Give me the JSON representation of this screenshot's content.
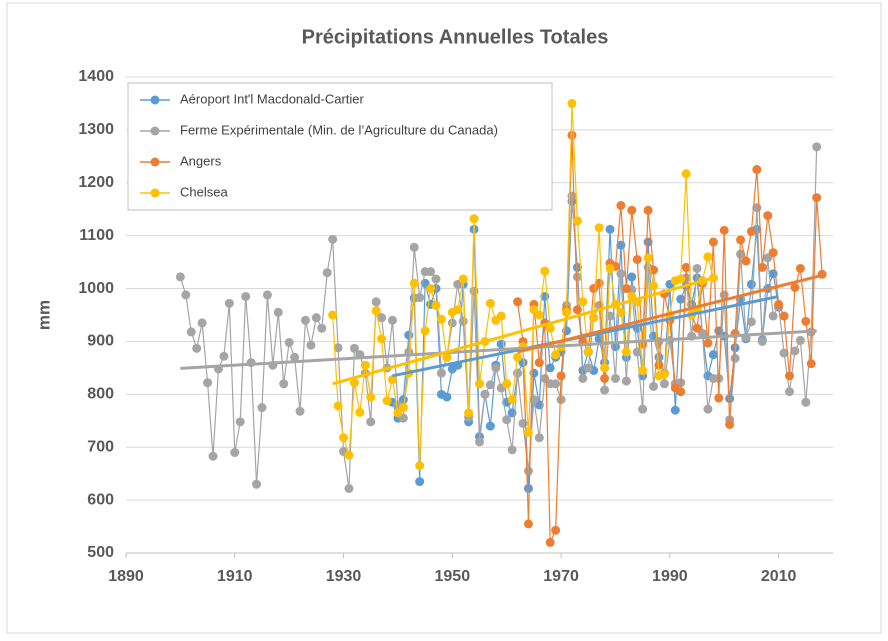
{
  "chart_data": {
    "type": "line",
    "title": "Précipitations Annuelles Totales",
    "ylabel": "mm",
    "xlim": [
      1890,
      2020
    ],
    "xticks": [
      1890,
      1910,
      1930,
      1950,
      1970,
      1990,
      2010
    ],
    "ylim": [
      500,
      1400
    ],
    "yticks": [
      500,
      600,
      700,
      800,
      900,
      1000,
      1100,
      1200,
      1300,
      1400
    ],
    "grid": true,
    "legend": "upper left",
    "series": [
      {
        "name": "Aéroport Int'l Macdonald-Cartier",
        "color": "#5b9bd5",
        "x": [
          1939,
          1940,
          1941,
          1942,
          1943,
          1944,
          1945,
          1946,
          1947,
          1948,
          1949,
          1950,
          1951,
          1952,
          1953,
          1954,
          1955,
          1956,
          1957,
          1958,
          1959,
          1960,
          1961,
          1962,
          1963,
          1964,
          1965,
          1966,
          1967,
          1968,
          1969,
          1970,
          1971,
          1972,
          1973,
          1974,
          1975,
          1976,
          1977,
          1978,
          1979,
          1980,
          1981,
          1982,
          1983,
          1984,
          1985,
          1986,
          1987,
          1988,
          1989,
          1990,
          1991,
          1992,
          1993,
          1994,
          1995,
          1996,
          1997,
          1998,
          1999,
          2000,
          2001,
          2002,
          2003,
          2004,
          2005,
          2006,
          2007,
          2008,
          2009,
          2010
        ],
        "values": [
          785,
          755,
          790,
          912,
          982,
          635,
          1010,
          970,
          1000,
          800,
          795,
          848,
          855,
          1008,
          748,
          1112,
          720,
          800,
          740,
          855,
          895,
          785,
          765,
          840,
          860,
          622,
          840,
          780,
          985,
          850,
          870,
          880,
          920,
          1165,
          1040,
          845,
          880,
          845,
          905,
          860,
          1112,
          890,
          1082,
          870,
          1022,
          925,
          835,
          1088,
          910,
          870,
          840,
          1008,
          770,
          980,
          1005,
          970,
          1020,
          915,
          835,
          875,
          920,
          910,
          792,
          888,
          980,
          905,
          1008,
          1112,
          903,
          1000,
          1028,
          965
        ],
        "trendline": [
          835,
          985
        ]
      },
      {
        "name": "Ferme Expérimentale (Min. de l’Agriculture du Canada)",
        "color": "#a5a5a5",
        "x": [
          1900,
          1901,
          1902,
          1903,
          1904,
          1905,
          1906,
          1907,
          1908,
          1909,
          1910,
          1911,
          1912,
          1913,
          1914,
          1915,
          1916,
          1917,
          1918,
          1919,
          1920,
          1921,
          1922,
          1923,
          1924,
          1925,
          1926,
          1927,
          1928,
          1929,
          1930,
          1931,
          1932,
          1933,
          1934,
          1935,
          1936,
          1937,
          1938,
          1939,
          1940,
          1941,
          1942,
          1943,
          1944,
          1945,
          1946,
          1947,
          1948,
          1949,
          1950,
          1951,
          1952,
          1953,
          1954,
          1955,
          1956,
          1957,
          1958,
          1959,
          1960,
          1961,
          1962,
          1963,
          1964,
          1965,
          1966,
          1967,
          1968,
          1969,
          1970,
          1971,
          1972,
          1973,
          1974,
          1975,
          1976,
          1977,
          1978,
          1979,
          1980,
          1981,
          1982,
          1983,
          1984,
          1985,
          1986,
          1987,
          1988,
          1989,
          1990,
          1991,
          1992,
          1993,
          1994,
          1995,
          1996,
          1997,
          1998,
          1999,
          2000,
          2001,
          2002,
          2003,
          2004,
          2005,
          2006,
          2007,
          2008,
          2009,
          2010,
          2011,
          2012,
          2013,
          2014,
          2015,
          2016,
          2017
        ],
        "values": [
          1022,
          988,
          918,
          887,
          935,
          822,
          683,
          848,
          872,
          972,
          690,
          748,
          985,
          860,
          630,
          775,
          988,
          855,
          955,
          820,
          898,
          870,
          768,
          940,
          893,
          945,
          925,
          1030,
          1093,
          888,
          692,
          622,
          887,
          875,
          840,
          748,
          975,
          945,
          850,
          940,
          780,
          755,
          880,
          1078,
          983,
          1032,
          1032,
          1018,
          840,
          870,
          935,
          1008,
          938,
          757,
          995,
          710,
          800,
          818,
          850,
          812,
          752,
          695,
          840,
          745,
          655,
          790,
          718,
          830,
          820,
          820,
          790,
          968,
          1175,
          1022,
          830,
          850,
          945,
          968,
          808,
          948,
          830,
          1028,
          825,
          998,
          880,
          772,
          1040,
          815,
          900,
          820,
          902,
          820,
          822,
          1020,
          910,
          1038,
          915,
          772,
          830,
          830,
          988,
          752,
          868,
          1065,
          908,
          937,
          1153,
          900,
          1058,
          948,
          968,
          878,
          805,
          882,
          902,
          785,
          918,
          1268
        ],
        "trendline": [
          849,
          920
        ]
      },
      {
        "name": "Angers",
        "color": "#ed7d31",
        "x": [
          1962,
          1963,
          1964,
          1965,
          1966,
          1967,
          1968,
          1969,
          1970,
          1971,
          1972,
          1973,
          1974,
          1975,
          1976,
          1977,
          1978,
          1979,
          1980,
          1981,
          1982,
          1983,
          1984,
          1985,
          1986,
          1987,
          1988,
          1989,
          1990,
          1991,
          1992,
          1993,
          1994,
          1995,
          1996,
          1997,
          1998,
          1999,
          2000,
          2001,
          2002,
          2003,
          2004,
          2005,
          2006,
          2007,
          2008,
          2009,
          2010,
          2011,
          2012,
          2013,
          2014,
          2015,
          2016,
          2017,
          2018
        ],
        "values": [
          975,
          900,
          555,
          970,
          860,
          935,
          520,
          543,
          835,
          960,
          1290,
          960,
          900,
          880,
          1000,
          1010,
          830,
          1048,
          1042,
          1157,
          1000,
          1148,
          1055,
          895,
          1148,
          1035,
          855,
          990,
          940,
          812,
          805,
          1040,
          950,
          925,
          1010,
          897,
          1088,
          793,
          1110,
          743,
          915,
          1092,
          1052,
          1108,
          1225,
          1040,
          1138,
          1068,
          970,
          948,
          835,
          1002,
          1038,
          938,
          858,
          1172,
          1027
        ],
        "trendline": [
          880,
          1025
        ]
      },
      {
        "name": "Chelsea",
        "color": "#ffc000",
        "x": [
          1928,
          1929,
          1930,
          1931,
          1932,
          1933,
          1934,
          1935,
          1936,
          1937,
          1938,
          1939,
          1940,
          1941,
          1942,
          1943,
          1944,
          1945,
          1946,
          1947,
          1948,
          1949,
          1950,
          1951,
          1952,
          1953,
          1954,
          1955,
          1956,
          1957,
          1958,
          1959,
          1960,
          1961,
          1962,
          1963,
          1964,
          1965,
          1966,
          1967,
          1968,
          1969,
          1970,
          1971,
          1972,
          1973,
          1974,
          1975,
          1976,
          1977,
          1978,
          1979,
          1980,
          1981,
          1982,
          1983,
          1984,
          1985,
          1986,
          1987,
          1988,
          1989,
          1990,
          1991,
          1992,
          1993,
          1994,
          1995,
          1996,
          1997,
          1998
        ],
        "values": [
          950,
          778,
          718,
          685,
          822,
          766,
          855,
          795,
          958,
          905,
          788,
          828,
          765,
          775,
          840,
          1010,
          665,
          920,
          1000,
          968,
          942,
          870,
          955,
          960,
          1018,
          765,
          1132,
          820,
          900,
          972,
          940,
          948,
          820,
          790,
          870,
          890,
          728,
          960,
          950,
          1033,
          925,
          875,
          890,
          955,
          1350,
          1128,
          975,
          880,
          945,
          1115,
          850,
          1038,
          970,
          955,
          880,
          985,
          975,
          845,
          1058,
          1005,
          835,
          838,
          950,
          1015,
          1018,
          1217,
          950,
          960,
          1015,
          1060,
          1020
        ],
        "trendline": [
          820,
          1020
        ]
      }
    ]
  }
}
